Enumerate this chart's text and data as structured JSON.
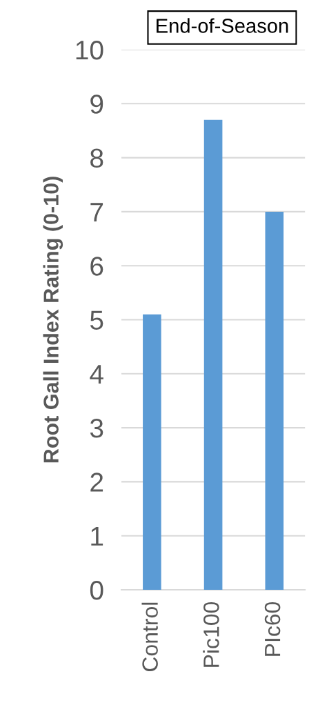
{
  "chart_data": {
    "type": "bar",
    "title": "End-of-Season",
    "ylabel": "Root Gall Index Rating (0-10)",
    "categories": [
      "Control",
      "Pic100",
      "PIc60"
    ],
    "values": [
      5.1,
      8.7,
      7.0
    ],
    "color": "#5b9bd5",
    "ylim": [
      0,
      10
    ],
    "yticks": [
      0,
      1,
      2,
      3,
      4,
      5,
      6,
      7,
      8,
      9,
      10
    ],
    "grid": "y"
  }
}
